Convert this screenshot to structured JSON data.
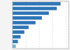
{
  "chart_data": {
    "type": "bar",
    "orientation": "horizontal",
    "categories": [
      null,
      null,
      null,
      null,
      null,
      null,
      null,
      null,
      null,
      null
    ],
    "values": [
      90,
      83,
      68,
      55,
      43,
      30,
      22,
      15,
      10,
      6
    ],
    "colors": [
      "#2e75b6",
      "#2e75b6",
      "#2e75b6",
      "#2e75b6",
      "#2e75b6",
      "#2e75b6",
      "#2e75b6",
      "#2e75b6",
      "#2e75b6",
      "#7ab0d4"
    ],
    "xlim": [
      0,
      105
    ],
    "xticks": [
      25,
      50,
      75,
      100
    ],
    "grid": true,
    "tick_labels": false
  }
}
